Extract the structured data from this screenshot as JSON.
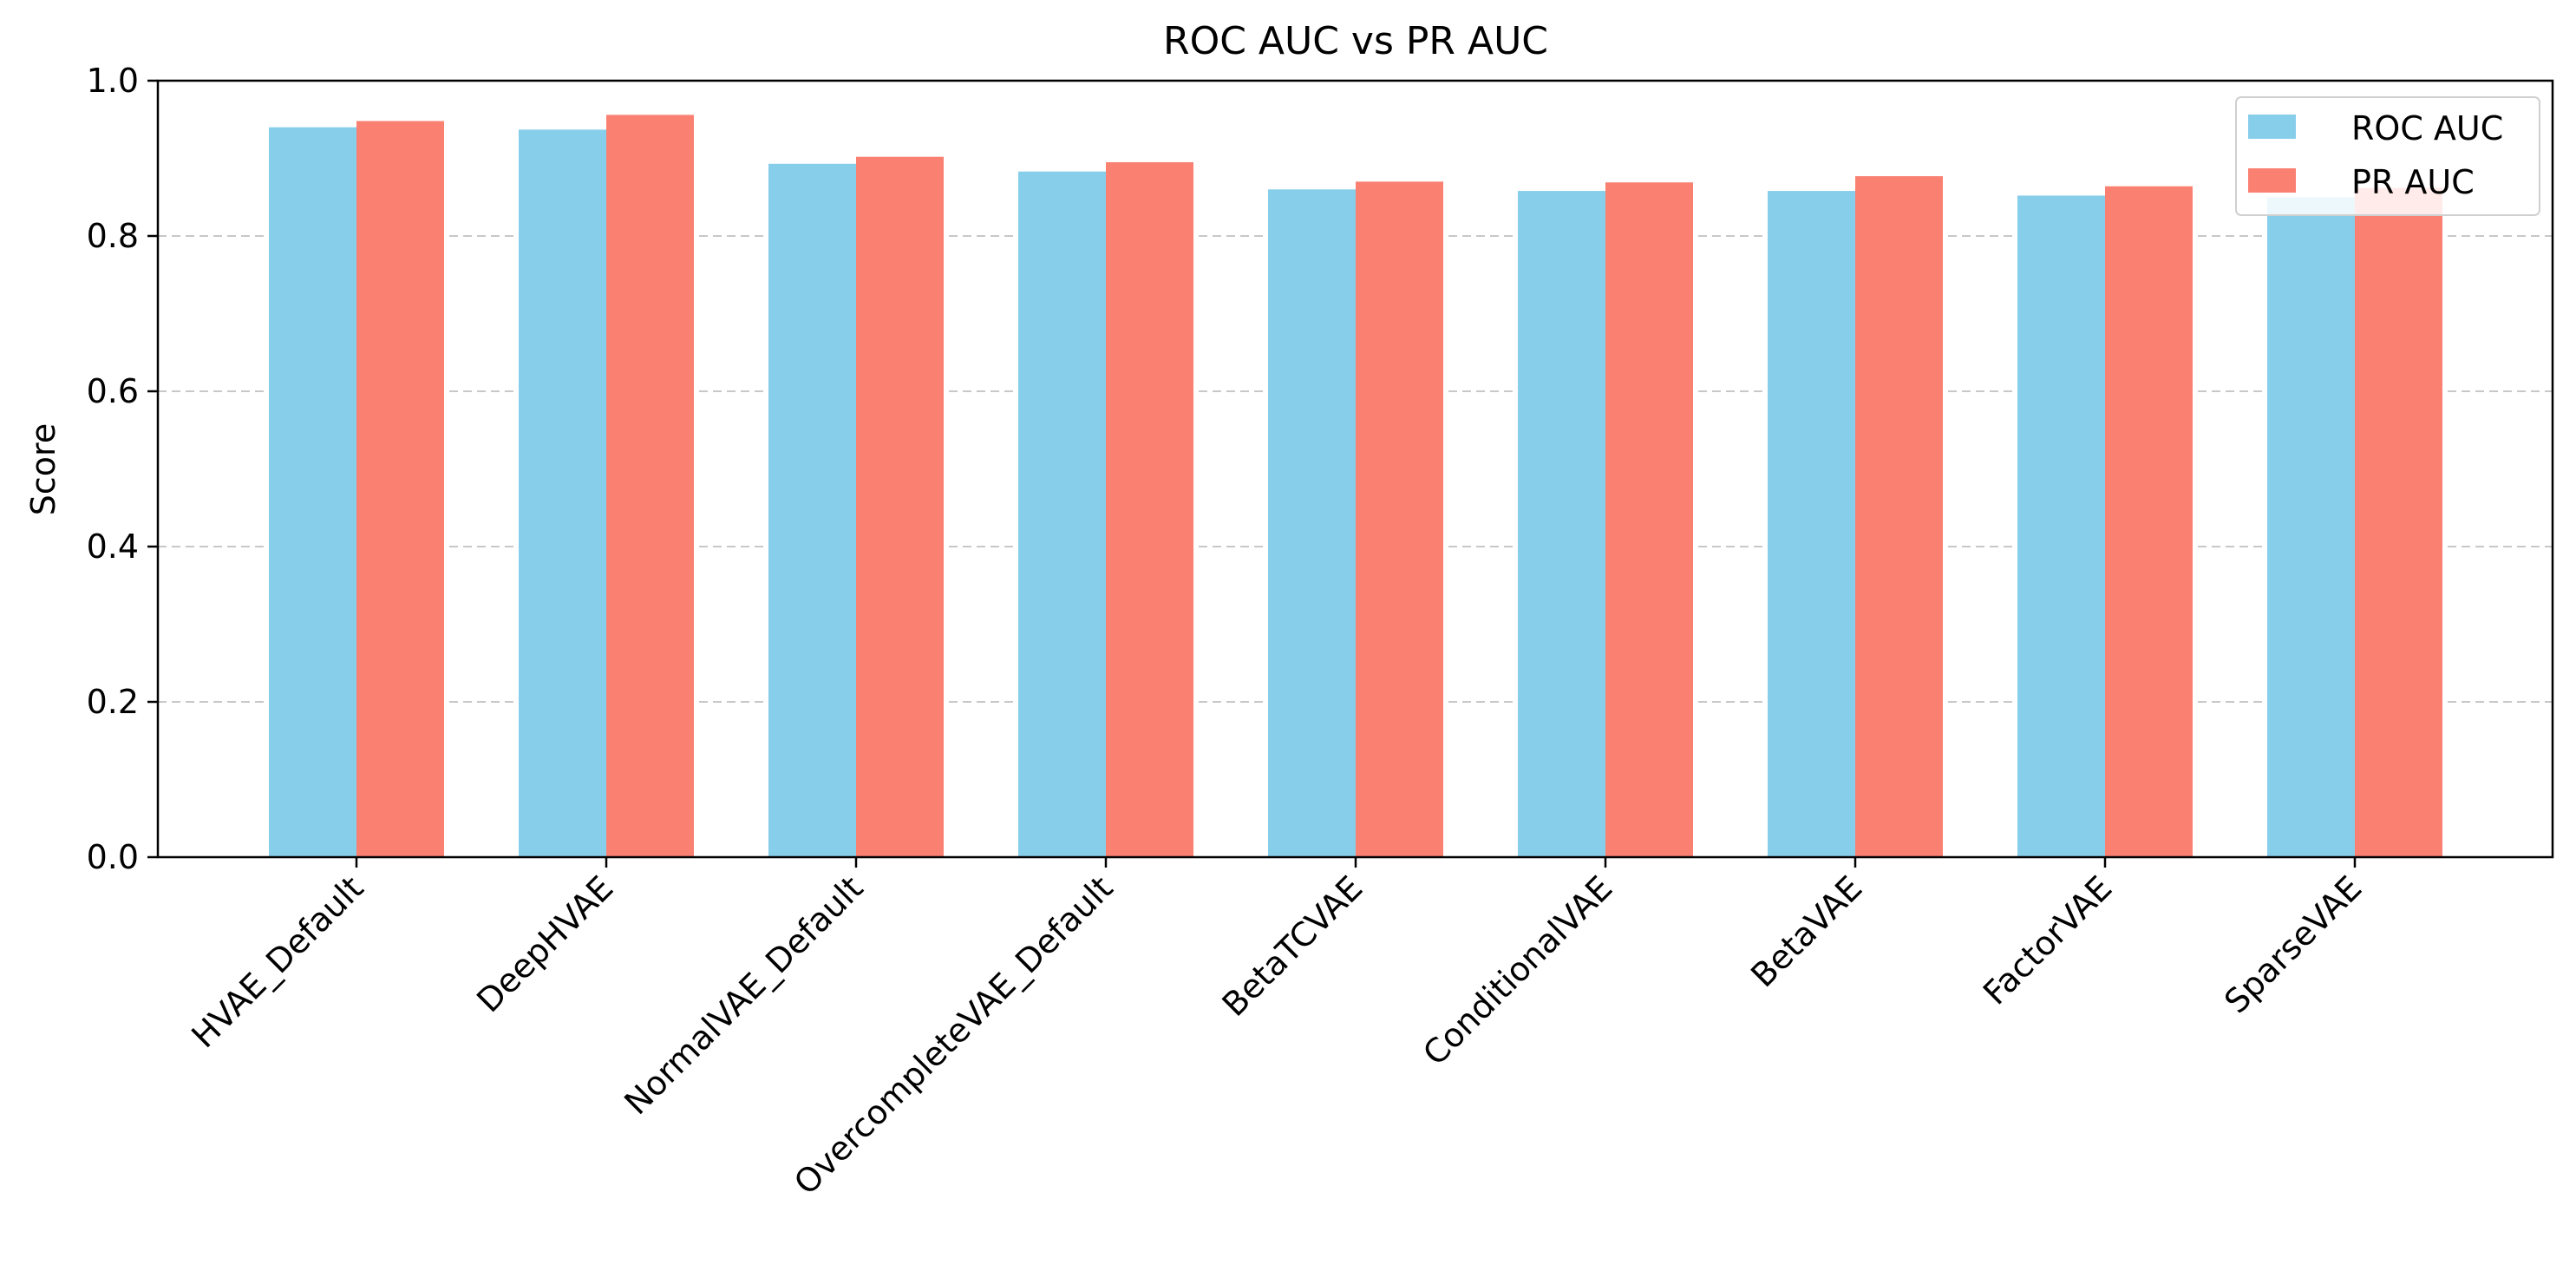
{
  "chart_data": {
    "type": "bar",
    "title": "ROC AUC vs PR AUC",
    "xlabel": "",
    "ylabel": "Score",
    "ylim": [
      0,
      1.0
    ],
    "yticks": [
      "0.0",
      "0.2",
      "0.4",
      "0.6",
      "0.8",
      "1.0"
    ],
    "grid": "horizontal dashed",
    "legend_position": "top-right",
    "categories": [
      "HVAE_Default",
      "DeepHVAE",
      "NormalVAE_Default",
      "OvercompleteVAE_Default",
      "BetaTCVAE",
      "ConditionalVAE",
      "BetaVAE",
      "FactorVAE",
      "SparseVAE"
    ],
    "series": [
      {
        "name": "ROC AUC",
        "color": "#87CEEB",
        "values": [
          0.94,
          0.937,
          0.893,
          0.883,
          0.86,
          0.858,
          0.858,
          0.852,
          0.85
        ]
      },
      {
        "name": "PR AUC",
        "color": "#FA8072",
        "values": [
          0.948,
          0.956,
          0.902,
          0.895,
          0.87,
          0.869,
          0.877,
          0.864,
          0.862
        ]
      }
    ]
  }
}
